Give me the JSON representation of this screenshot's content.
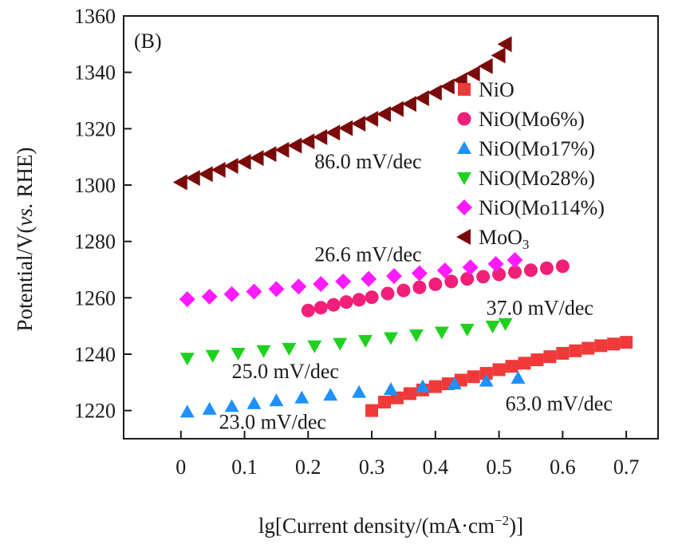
{
  "chart_data": {
    "type": "scatter",
    "panel_label": "(B)",
    "xlabel_main": "lg[Current density/(mA·cm",
    "xlabel_sup": "−2",
    "xlabel_end": ")]",
    "ylabel_pre": "Potential/V(",
    "ylabel_ital": "vs.",
    "ylabel_post": " RHE)",
    "xlim": [
      -0.09,
      0.75
    ],
    "ylim": [
      1210,
      1360
    ],
    "xticks": [
      "0",
      "0.1",
      "0.2",
      "0.3",
      "0.4",
      "0.5",
      "0.6",
      "0.7"
    ],
    "xtick_values": [
      0,
      0.1,
      0.2,
      0.3,
      0.4,
      0.5,
      0.6,
      0.7
    ],
    "yticks": [
      "1220",
      "1240",
      "1260",
      "1280",
      "1300",
      "1320",
      "1340",
      "1360"
    ],
    "ytick_values": [
      1220,
      1240,
      1260,
      1280,
      1300,
      1320,
      1340,
      1360
    ],
    "legend_position": "right",
    "series": [
      {
        "name": "NiO",
        "color": "#f03a3a",
        "marker": "square",
        "x": [
          0.3,
          0.32,
          0.34,
          0.36,
          0.38,
          0.4,
          0.42,
          0.44,
          0.46,
          0.48,
          0.5,
          0.52,
          0.54,
          0.56,
          0.58,
          0.6,
          0.62,
          0.64,
          0.66,
          0.68,
          0.7
        ],
        "y": [
          1220,
          1223,
          1224.5,
          1226,
          1227.3,
          1228.5,
          1229.5,
          1230.8,
          1232,
          1233.2,
          1234.5,
          1235.7,
          1236.8,
          1238,
          1239.1,
          1240.3,
          1241.2,
          1242.1,
          1243,
          1243.6,
          1244.2
        ]
      },
      {
        "name": "NiO(Mo6%)",
        "color": "#f0207a",
        "marker": "circle",
        "x": [
          0.2,
          0.22,
          0.24,
          0.26,
          0.28,
          0.3,
          0.325,
          0.35,
          0.375,
          0.4,
          0.425,
          0.45,
          0.475,
          0.5,
          0.525,
          0.55,
          0.575,
          0.6
        ],
        "y": [
          1255.5,
          1256.5,
          1257.5,
          1258.5,
          1259.3,
          1260.2,
          1261.5,
          1262.6,
          1263.7,
          1264.8,
          1265.8,
          1266.7,
          1267.5,
          1268.3,
          1269.1,
          1269.8,
          1270.5,
          1271.2
        ]
      },
      {
        "name": "NiO(Mo17%)",
        "color": "#1e90ff",
        "marker": "triangle-up",
        "x": [
          0.01,
          0.045,
          0.08,
          0.115,
          0.15,
          0.19,
          0.235,
          0.28,
          0.33,
          0.38,
          0.43,
          0.48,
          0.53
        ],
        "y": [
          1219.5,
          1220.5,
          1221.5,
          1222.5,
          1223.5,
          1224.5,
          1225.5,
          1226.5,
          1227.5,
          1228.5,
          1229.5,
          1230.5,
          1231.5
        ]
      },
      {
        "name": "NiO(Mo28%)",
        "color": "#1fd11f",
        "marker": "triangle-down",
        "x": [
          0.01,
          0.05,
          0.09,
          0.13,
          0.17,
          0.21,
          0.25,
          0.29,
          0.33,
          0.37,
          0.41,
          0.45,
          0.49,
          0.51
        ],
        "y": [
          1238.5,
          1239.5,
          1240.3,
          1241.2,
          1242,
          1242.9,
          1243.8,
          1244.8,
          1245.8,
          1246.8,
          1247.8,
          1248.8,
          1249.9,
          1250.8
        ]
      },
      {
        "name": "NiO(Mo114%)",
        "color": "#ff1aff",
        "marker": "diamond",
        "x": [
          0.01,
          0.045,
          0.08,
          0.115,
          0.15,
          0.185,
          0.22,
          0.255,
          0.295,
          0.335,
          0.375,
          0.415,
          0.455,
          0.495,
          0.525
        ],
        "y": [
          1259.5,
          1260.4,
          1261.3,
          1262.2,
          1263.1,
          1264,
          1264.9,
          1265.8,
          1266.7,
          1267.7,
          1268.7,
          1269.7,
          1270.8,
          1272,
          1273.4
        ]
      },
      {
        "name": "MoO",
        "name_sub": "3",
        "color": "#7a0a0a",
        "marker": "triangle-left",
        "x": [
          0,
          0.02,
          0.04,
          0.06,
          0.08,
          0.1,
          0.12,
          0.14,
          0.16,
          0.18,
          0.2,
          0.22,
          0.24,
          0.26,
          0.28,
          0.3,
          0.32,
          0.34,
          0.36,
          0.38,
          0.4,
          0.42,
          0.44,
          0.46,
          0.48,
          0.5,
          0.51
        ],
        "y": [
          1301,
          1302.5,
          1303.9,
          1305.4,
          1306.8,
          1308.2,
          1309.6,
          1311,
          1312.5,
          1314,
          1315.5,
          1317,
          1318.6,
          1320.2,
          1321.8,
          1323.5,
          1325.2,
          1327,
          1328.8,
          1330.8,
          1332.8,
          1335,
          1337.2,
          1339.6,
          1342.2,
          1346,
          1350
        ]
      }
    ],
    "annotations": [
      {
        "text": "86.0 mV/dec",
        "x": 0.21,
        "y": 1306
      },
      {
        "text": "26.6 mV/dec",
        "x": 0.21,
        "y": 1273
      },
      {
        "text": "37.0 mV/dec",
        "x": 0.48,
        "y": 1254
      },
      {
        "text": "25.0 mV/dec",
        "x": 0.08,
        "y": 1231.5
      },
      {
        "text": "23.0 mV/dec",
        "x": 0.06,
        "y": 1213.5
      },
      {
        "text": "63.0 mV/dec",
        "x": 0.51,
        "y": 1220
      }
    ]
  }
}
